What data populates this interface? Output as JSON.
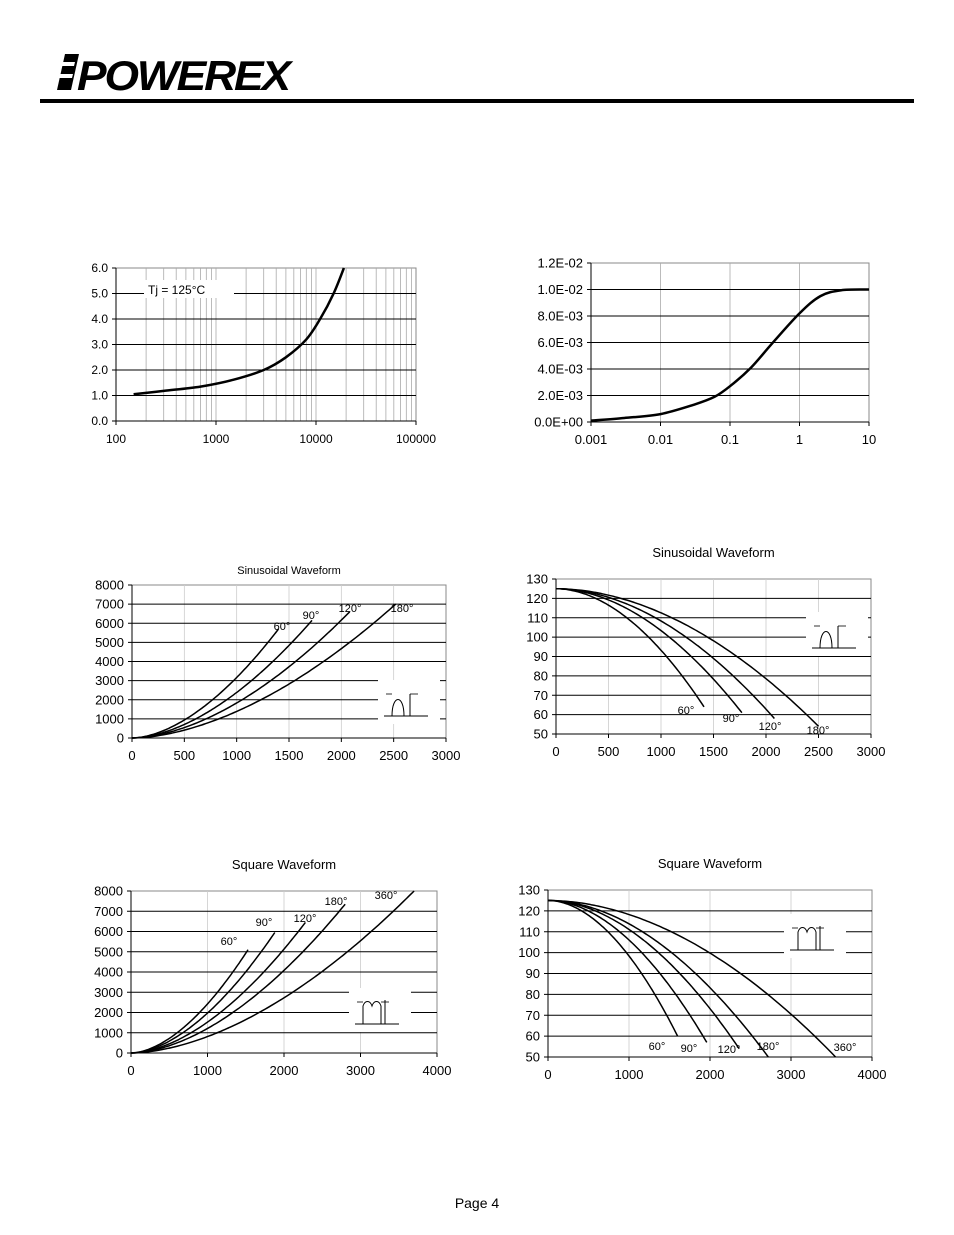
{
  "logo": {
    "text": "POWEREX"
  },
  "page": {
    "number_label": "Page 4"
  },
  "chart_data": [
    {
      "id": "c1",
      "type": "line",
      "xscale": "log",
      "title": "",
      "xlim": [
        100,
        100000
      ],
      "ylim": [
        0,
        6
      ],
      "xticks": [
        "100",
        "1000",
        "10000",
        "100000"
      ],
      "yticks": [
        "0.0",
        "1.0",
        "2.0",
        "3.0",
        "4.0",
        "5.0",
        "6.0"
      ],
      "annotation": "Tj = 125°C",
      "grid": "y-major + x-log-minor",
      "series": [
        {
          "x": [
            150,
            300,
            700,
            1500,
            3000,
            5000,
            8000,
            11000,
            15000,
            19000
          ],
          "y": [
            1.05,
            1.18,
            1.35,
            1.62,
            2.0,
            2.5,
            3.2,
            4.0,
            5.0,
            6.0
          ]
        }
      ]
    },
    {
      "id": "c2",
      "type": "line",
      "xscale": "log",
      "title": "",
      "xlim": [
        0.001,
        10
      ],
      "ylim": [
        0,
        0.012
      ],
      "xticks": [
        "0.001",
        "0.01",
        "0.1",
        "1",
        "10"
      ],
      "yticks": [
        "0.0E+00",
        "2.0E-03",
        "4.0E-03",
        "6.0E-03",
        "8.0E-03",
        "1.0E-02",
        "1.2E-02"
      ],
      "grid": "y-major + x-decade",
      "series": [
        {
          "x": [
            0.001,
            0.003,
            0.01,
            0.03,
            0.06,
            0.1,
            0.2,
            0.4,
            1,
            2,
            4,
            10
          ],
          "y": [
            0.0001,
            0.0003,
            0.0006,
            0.0013,
            0.0019,
            0.0027,
            0.0041,
            0.0059,
            0.0082,
            0.0095,
            0.00995,
            0.01
          ]
        }
      ]
    },
    {
      "id": "c3",
      "type": "line",
      "title": "Sinusoidal Waveform",
      "xlim": [
        0,
        3000
      ],
      "ylim": [
        0,
        8000
      ],
      "xticks": [
        "0",
        "500",
        "1000",
        "1500",
        "2000",
        "2500",
        "3000"
      ],
      "yticks": [
        "0",
        "1000",
        "2000",
        "3000",
        "4000",
        "5000",
        "6000",
        "7000",
        "8000"
      ],
      "inset": "sine",
      "series": [
        {
          "name": "60°",
          "x": [
            0,
            1400
          ],
          "y": [
            0,
            5700
          ]
        },
        {
          "name": "90°",
          "x": [
            0,
            1720
          ],
          "y": [
            0,
            6150
          ]
        },
        {
          "name": "120°",
          "x": [
            0,
            2080
          ],
          "y": [
            0,
            6600
          ]
        },
        {
          "name": "180°",
          "x": [
            0,
            2520
          ],
          "y": [
            0,
            7000
          ]
        }
      ]
    },
    {
      "id": "c4",
      "type": "line",
      "title": "Sinusoidal Waveform",
      "xlim": [
        0,
        3000
      ],
      "ylim": [
        50,
        130
      ],
      "xticks": [
        "0",
        "500",
        "1000",
        "1500",
        "2000",
        "2500",
        "3000"
      ],
      "yticks": [
        "50",
        "60",
        "70",
        "80",
        "90",
        "100",
        "110",
        "120",
        "130"
      ],
      "inset": "sine",
      "series": [
        {
          "name": "60°",
          "x": [
            0,
            1410
          ],
          "y": [
            125,
            64
          ]
        },
        {
          "name": "90°",
          "x": [
            0,
            1770
          ],
          "y": [
            125,
            61
          ]
        },
        {
          "name": "120°",
          "x": [
            0,
            2080
          ],
          "y": [
            125,
            58
          ]
        },
        {
          "name": "180°",
          "x": [
            0,
            2500
          ],
          "y": [
            125,
            54
          ]
        }
      ]
    },
    {
      "id": "c5",
      "type": "line",
      "title": "Square Waveform",
      "xlim": [
        0,
        4000
      ],
      "ylim": [
        0,
        8000
      ],
      "xticks": [
        "0",
        "1000",
        "2000",
        "3000",
        "4000"
      ],
      "yticks": [
        "0",
        "1000",
        "2000",
        "3000",
        "4000",
        "5000",
        "6000",
        "7000",
        "8000"
      ],
      "inset": "square",
      "series": [
        {
          "name": "60°",
          "x": [
            0,
            1530
          ],
          "y": [
            0,
            5100
          ]
        },
        {
          "name": "90°",
          "x": [
            0,
            1880
          ],
          "y": [
            0,
            5950
          ]
        },
        {
          "name": "120°",
          "x": [
            0,
            2280
          ],
          "y": [
            0,
            6450
          ]
        },
        {
          "name": "180°",
          "x": [
            0,
            2800
          ],
          "y": [
            0,
            7350
          ]
        },
        {
          "name": "360°",
          "x": [
            0,
            3700
          ],
          "y": [
            0,
            8000
          ]
        }
      ]
    },
    {
      "id": "c6",
      "type": "line",
      "title": "Square Waveform",
      "xlim": [
        0,
        4000
      ],
      "ylim": [
        50,
        130
      ],
      "xticks": [
        "0",
        "1000",
        "2000",
        "3000",
        "4000"
      ],
      "yticks": [
        "50",
        "60",
        "70",
        "80",
        "90",
        "100",
        "110",
        "120",
        "130"
      ],
      "inset": "square",
      "series": [
        {
          "name": "60°",
          "x": [
            0,
            1600
          ],
          "y": [
            125,
            60
          ]
        },
        {
          "name": "90°",
          "x": [
            0,
            1960
          ],
          "y": [
            125,
            57
          ]
        },
        {
          "name": "120°",
          "x": [
            0,
            2360
          ],
          "y": [
            125,
            54
          ]
        },
        {
          "name": "180°",
          "x": [
            0,
            2720
          ],
          "y": [
            125,
            50
          ]
        },
        {
          "name": "360°",
          "x": [
            0,
            3550
          ],
          "y": [
            125,
            50
          ]
        }
      ]
    }
  ]
}
